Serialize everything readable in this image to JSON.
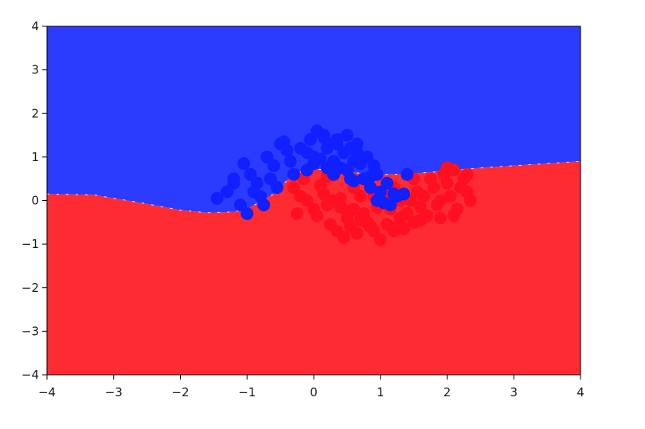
{
  "chart_data": {
    "type": "scatter",
    "title": "",
    "xlabel": "",
    "ylabel": "",
    "xlim": [
      -4,
      4
    ],
    "ylim": [
      -4,
      4
    ],
    "grid": false,
    "legend": "none",
    "x_ticks": [
      -4,
      -3,
      -2,
      -1,
      0,
      1,
      2,
      3,
      4
    ],
    "y_ticks": [
      4,
      3,
      2,
      1,
      0,
      -1,
      -2,
      -3,
      -4
    ],
    "x_tick_labels": [
      "−4",
      "−3",
      "−2",
      "−1",
      "0",
      "1",
      "2",
      "3",
      "4"
    ],
    "y_tick_labels": [
      "4",
      "3",
      "2",
      "1",
      "0",
      "−1",
      "−2",
      "−3",
      "−4"
    ],
    "colors": {
      "region_class_0": "#2b3cff",
      "region_class_1": "#ff2b32",
      "points_class_0": "#1020ff",
      "points_class_1": "#ff1020"
    },
    "decision_boundary": {
      "x": [
        -4.0,
        -3.3,
        -2.6,
        -2.0,
        -1.6,
        -1.2,
        -1.0,
        -0.6,
        -0.3,
        0.0,
        0.3,
        0.6,
        0.9,
        1.2,
        1.5,
        2.0,
        2.5,
        3.0,
        3.5,
        4.0
      ],
      "y": [
        0.15,
        0.13,
        -0.05,
        -0.22,
        -0.28,
        -0.26,
        -0.2,
        0.15,
        0.62,
        0.72,
        0.7,
        0.64,
        0.6,
        0.6,
        0.62,
        0.68,
        0.75,
        0.8,
        0.85,
        0.9
      ]
    },
    "series": [
      {
        "class": 0,
        "x": [
          -1.0,
          -1.1,
          -1.3,
          -1.45,
          -1.2,
          -0.9,
          -0.75,
          -1.05,
          -0.95,
          -0.85,
          -0.6,
          -0.5,
          -0.7,
          -0.4,
          -0.65,
          -0.55,
          -0.35,
          -0.2,
          -0.05,
          0.05,
          0.15,
          0.25,
          -0.1,
          0.0,
          0.1,
          0.2,
          0.35,
          0.45,
          0.55,
          0.65,
          0.4,
          0.5,
          0.6,
          0.7,
          0.8,
          0.9,
          0.75,
          0.85,
          0.95,
          1.0,
          1.1,
          1.2,
          1.05,
          0.95,
          1.15,
          1.25,
          1.35,
          0.3,
          0.5,
          -0.1,
          0.0,
          0.55,
          0.85,
          -0.3,
          -0.8,
          -1.2,
          0.15,
          0.35,
          0.65,
          -0.45,
          1.4,
          0.3,
          0.6,
          0.2
        ],
        "y": [
          -0.3,
          -0.1,
          0.2,
          0.05,
          0.5,
          0.2,
          -0.1,
          0.85,
          0.6,
          0.4,
          0.8,
          1.3,
          1.0,
          1.15,
          0.5,
          0.3,
          0.9,
          1.2,
          1.4,
          1.6,
          1.5,
          1.3,
          1.1,
          1.0,
          0.95,
          1.2,
          1.3,
          1.1,
          1.2,
          1.1,
          0.75,
          0.7,
          0.9,
          0.85,
          1.0,
          0.8,
          0.5,
          0.3,
          0.6,
          0.2,
          0.4,
          0.15,
          -0.05,
          0.0,
          -0.1,
          0.1,
          0.15,
          0.9,
          1.5,
          0.7,
          0.85,
          0.5,
          0.55,
          0.6,
          0.1,
          0.4,
          1.45,
          1.4,
          1.3,
          1.35,
          0.6,
          0.6,
          0.45,
          0.75
        ]
      },
      {
        "class": 1,
        "x": [
          -0.3,
          -0.2,
          -0.1,
          0.0,
          0.1,
          -0.25,
          0.15,
          0.2,
          0.3,
          0.05,
          0.4,
          0.5,
          0.25,
          0.35,
          0.6,
          0.45,
          0.55,
          0.65,
          0.7,
          0.5,
          0.8,
          0.9,
          1.0,
          0.75,
          0.85,
          0.95,
          1.1,
          1.2,
          1.3,
          1.15,
          1.25,
          1.4,
          1.5,
          1.6,
          1.35,
          1.45,
          1.55,
          1.7,
          1.8,
          1.9,
          2.0,
          1.75,
          1.85,
          1.95,
          2.05,
          2.1,
          2.2,
          2.3,
          2.35,
          2.15,
          2.25,
          2.3,
          2.0,
          1.9,
          1.65,
          1.5,
          1.3,
          1.1,
          0.9,
          0.4,
          0.2,
          -0.15,
          0.6,
          0.7,
          1.05,
          1.2,
          0.95,
          1.4,
          1.6,
          2.1
        ],
        "y": [
          0.3,
          0.1,
          0.0,
          -0.2,
          0.35,
          -0.3,
          0.15,
          0.55,
          0.0,
          -0.35,
          -0.15,
          -0.4,
          -0.55,
          -0.7,
          -0.2,
          -0.85,
          -0.6,
          -0.75,
          -0.45,
          -0.25,
          -0.5,
          -0.7,
          -0.9,
          -0.3,
          -0.6,
          -0.15,
          -0.55,
          -0.7,
          -0.4,
          -0.2,
          -0.6,
          -0.3,
          -0.5,
          -0.15,
          -0.65,
          0.0,
          0.2,
          -0.35,
          0.3,
          0.0,
          0.4,
          0.5,
          -0.1,
          0.6,
          0.1,
          0.7,
          0.3,
          0.2,
          0.0,
          -0.2,
          0.5,
          0.6,
          0.75,
          -0.4,
          0.1,
          0.5,
          0.0,
          0.15,
          0.1,
          0.05,
          -0.1,
          0.5,
          0.3,
          0.1,
          -0.05,
          0.3,
          0.0,
          -0.3,
          -0.45,
          -0.35
        ]
      }
    ]
  }
}
